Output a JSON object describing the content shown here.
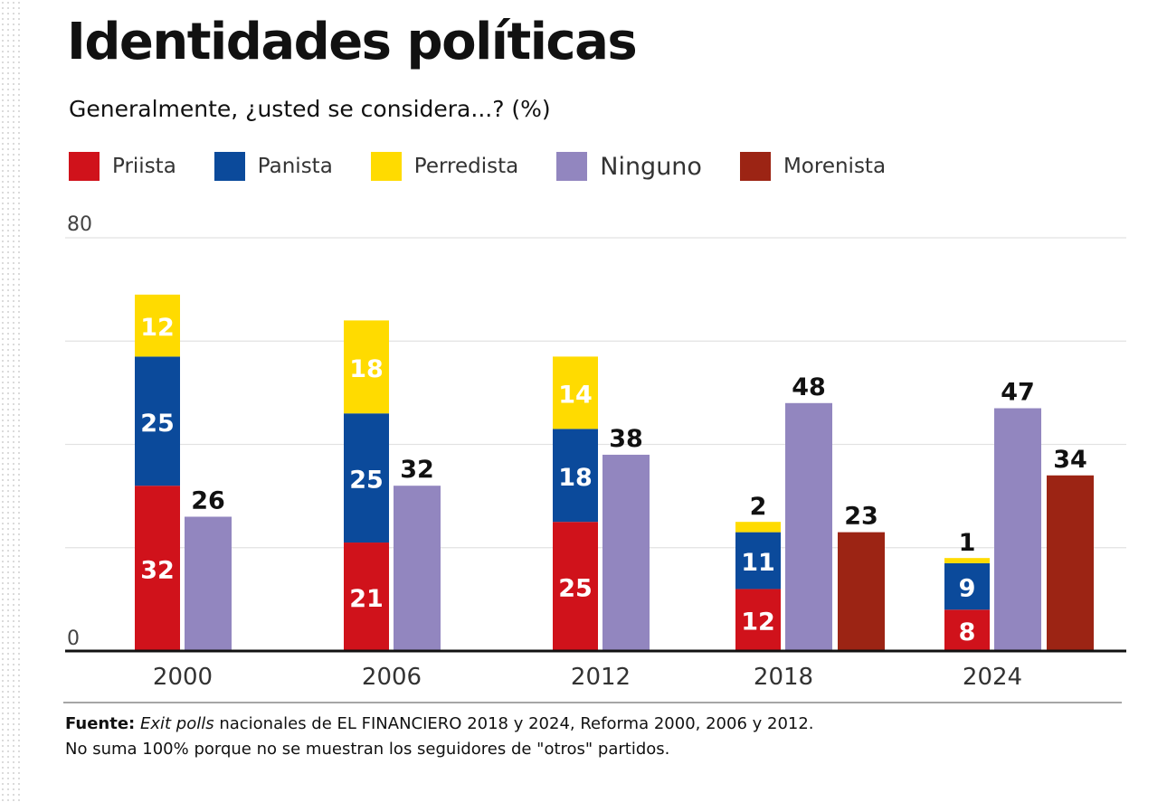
{
  "title": "Identidades políticas",
  "subtitle": "Generalmente, ¿usted se considera...? (%)",
  "chart_data": {
    "type": "bar",
    "stacked_group": [
      "Priista",
      "Panista",
      "Perredista"
    ],
    "categories": [
      "2000",
      "2006",
      "2012",
      "2018",
      "2024"
    ],
    "series": [
      {
        "name": "Priista",
        "color": "#d0121b",
        "values": [
          32,
          21,
          25,
          12,
          8
        ]
      },
      {
        "name": "Panista",
        "color": "#0b4a9b",
        "values": [
          25,
          25,
          18,
          11,
          9
        ]
      },
      {
        "name": "Perredista",
        "color": "#ffdb00",
        "values": [
          12,
          18,
          14,
          2,
          1
        ]
      },
      {
        "name": "Ninguno",
        "color": "#9286bf",
        "values": [
          26,
          32,
          38,
          48,
          47
        ]
      },
      {
        "name": "Morenista",
        "color": "#9c2414",
        "values": [
          null,
          null,
          null,
          23,
          34
        ]
      }
    ],
    "ylim": [
      0,
      80
    ],
    "yticks": [
      "0",
      "80"
    ],
    "grid": true,
    "legend": "top-left"
  },
  "footer": {
    "source_label": "Fuente:",
    "source_italic": "Exit polls",
    "source_text": " nacionales de EL FINANCIERO 2018 y 2024, Reforma 2000, 2006 y 2012.",
    "note": "No suma 100% porque no se muestran los seguidores de \"otros\" partidos."
  }
}
